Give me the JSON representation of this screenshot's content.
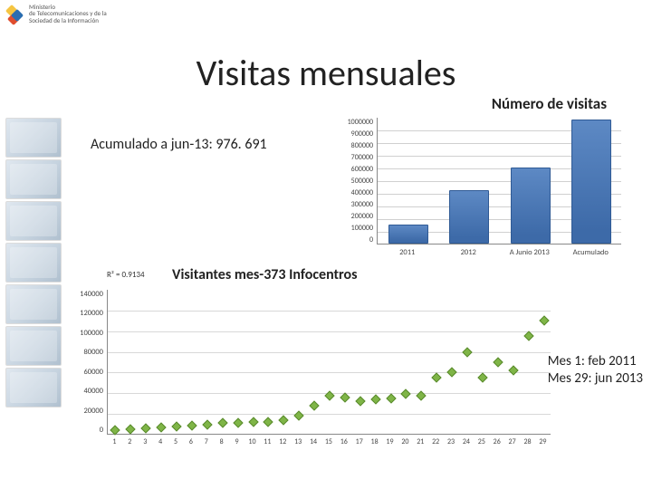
{
  "logo_text_line1": "Ministerio",
  "logo_text_line2": "de Telecomunicaciones y de la",
  "logo_text_line3": "Sociedad de la Información",
  "title": "Visitas mensuales",
  "subtitle": "Número de visitas",
  "accum_label": "Acumulado a jun-13: 976. 691",
  "bar_chart": {
    "ymax": 1000000,
    "ytick_step": 100000,
    "yticks": [
      "1000000",
      "900000",
      "800000",
      "700000",
      "600000",
      "500000",
      "400000",
      "300000",
      "200000",
      "100000",
      "0"
    ],
    "categories": [
      "2011",
      "2012",
      "A Junio 2013",
      "Acumulado"
    ],
    "values": [
      150000,
      420000,
      600000,
      980000
    ],
    "bar_color": "#3d6aa8",
    "bg": "#ffffff",
    "grid": "#d0d0d0"
  },
  "r2_label": "R² = 0.9134",
  "chart2_title": "Visitantes mes-373 Infocentros",
  "mes_line1": "Mes  1: feb 2011",
  "mes_line2": "Mes 29: jun 2013",
  "scatter": {
    "ymax": 140000,
    "ytick_step": 20000,
    "yticks": [
      "140000",
      "120000",
      "100000",
      "80000",
      "60000",
      "40000",
      "20000",
      "0"
    ],
    "x": [
      1,
      2,
      3,
      4,
      5,
      6,
      7,
      8,
      9,
      10,
      11,
      12,
      13,
      14,
      15,
      16,
      17,
      18,
      19,
      20,
      21,
      22,
      23,
      24,
      25,
      26,
      27,
      28,
      29
    ],
    "y": [
      4000,
      5000,
      6000,
      7000,
      8000,
      9000,
      10000,
      11000,
      11000,
      12000,
      12000,
      14000,
      18000,
      28000,
      38000,
      36000,
      32000,
      34000,
      35000,
      39000,
      38000,
      55000,
      60000,
      80000,
      55000,
      70000,
      62000,
      95000,
      110000
    ],
    "marker_color": "#7fb547",
    "border_color": "#5a8a2e",
    "bg": "#ffffff",
    "grid": "#d8d8d8"
  }
}
